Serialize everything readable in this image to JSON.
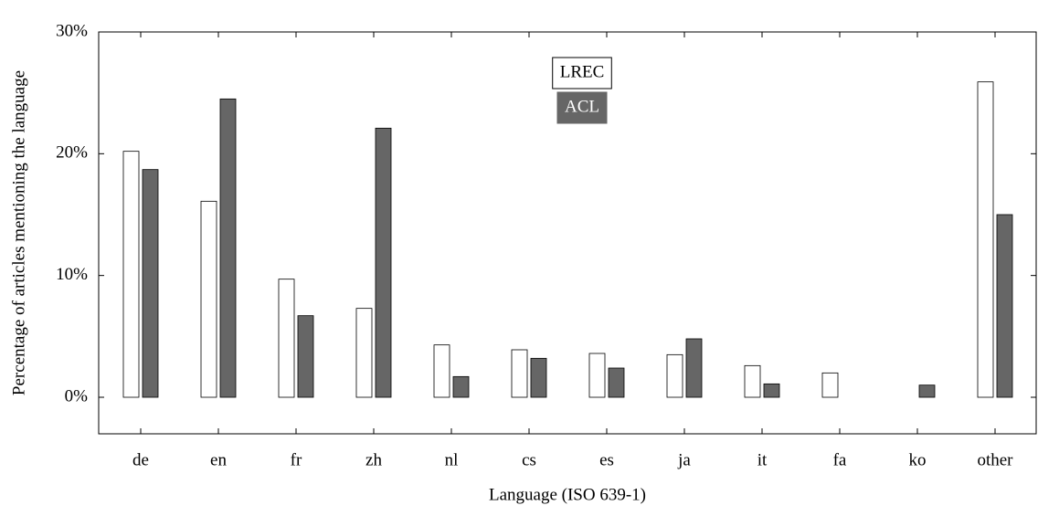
{
  "chart_data": {
    "type": "bar",
    "y_label": "Percentage of articles mentioning the language",
    "x_label": "Language (ISO 639-1)",
    "categories": [
      "de",
      "en",
      "fr",
      "zh",
      "nl",
      "cs",
      "es",
      "ja",
      "it",
      "fa",
      "ko",
      "other"
    ],
    "series": [
      {
        "name": "LREC",
        "color": "#ffffff",
        "values": [
          20.2,
          16.1,
          9.7,
          7.3,
          4.3,
          3.9,
          3.6,
          3.5,
          2.6,
          2.0,
          0,
          25.9
        ]
      },
      {
        "name": "ACL",
        "color": "#666666",
        "values": [
          18.7,
          24.5,
          6.7,
          22.1,
          1.7,
          3.2,
          2.4,
          4.8,
          1.1,
          0,
          1.0,
          15.0
        ]
      }
    ],
    "ylim": [
      -3,
      30
    ],
    "yticks": [
      {
        "value": 0,
        "label": "0%"
      },
      {
        "value": 10,
        "label": "10%"
      },
      {
        "value": 20,
        "label": "20%"
      },
      {
        "value": 30,
        "label": "30%"
      }
    ],
    "legend": "top"
  }
}
